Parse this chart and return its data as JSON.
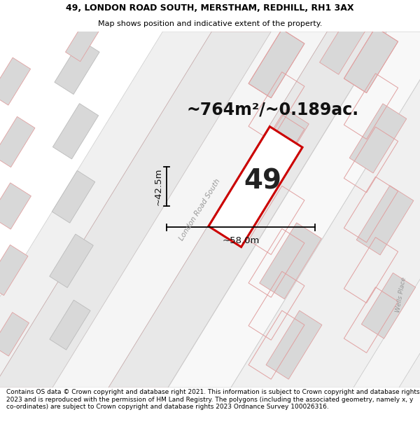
{
  "title_line1": "49, LONDON ROAD SOUTH, MERSTHAM, REDHILL, RH1 3AX",
  "title_line2": "Map shows position and indicative extent of the property.",
  "footer_text": "Contains OS data © Crown copyright and database right 2021. This information is subject to Crown copyright and database rights 2023 and is reproduced with the permission of HM Land Registry. The polygons (including the associated geometry, namely x, y co-ordinates) are subject to Crown copyright and database rights 2023 Ordnance Survey 100026316.",
  "area_text": "~764m²/~0.189ac.",
  "plot_number": "49",
  "dim_width": "~58.0m",
  "dim_height": "~42.5m",
  "map_bg": "#ffffff",
  "road_fill": "#eeeeee",
  "road_edge": "#cccccc",
  "building_fill": "#d8d8d8",
  "building_edge_gray": "#bbbbbb",
  "building_edge_pink": "#e8aaaa",
  "plot_outline": "#dd0000",
  "road_label": "London Road South",
  "wells_label": "Wells Place",
  "title_fontsize": 9.0,
  "subtitle_fontsize": 8.0,
  "footer_fontsize": 6.5,
  "area_fontsize": 17,
  "plot_num_fontsize": 28,
  "dim_fontsize": 9.5
}
